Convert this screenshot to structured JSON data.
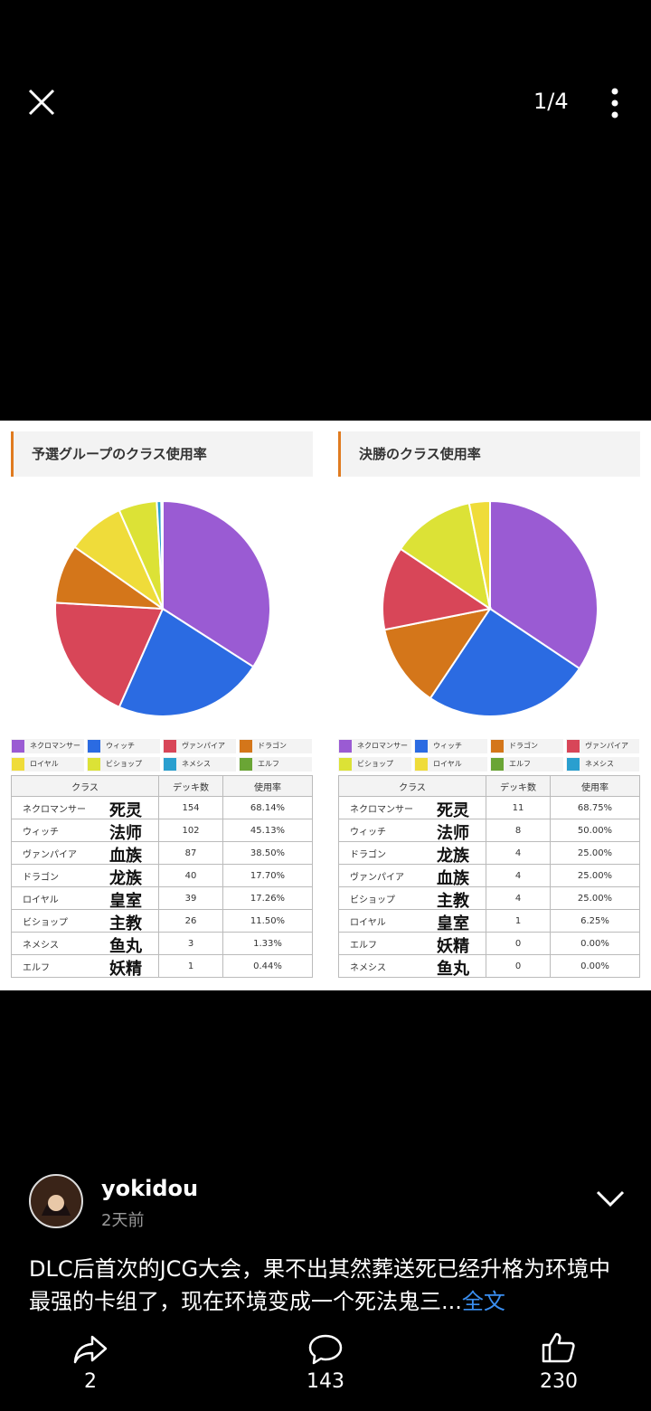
{
  "top_bar": {
    "page_indicator": "1/4"
  },
  "charts": [
    {
      "title": "予選グループのクラス使用率",
      "legend": [
        {
          "name": "ネクロマンサー",
          "color": "#9a5bd3"
        },
        {
          "name": "ウィッチ",
          "color": "#2b6be2"
        },
        {
          "name": "ヴァンパイア",
          "color": "#d84658"
        },
        {
          "name": "ドラゴン",
          "color": "#d4761a"
        },
        {
          "name": "ロイヤル",
          "color": "#efdc3a"
        },
        {
          "name": "ビショップ",
          "color": "#dce236"
        },
        {
          "name": "ネメシス",
          "color": "#2a9fcf"
        },
        {
          "name": "エルフ",
          "color": "#6aa535"
        }
      ],
      "table": {
        "header": [
          "クラス",
          "デッキ数",
          "使用率"
        ],
        "rows": [
          [
            "ネクロマンサー",
            "死灵",
            154,
            "68.14%"
          ],
          [
            "ウィッチ",
            "法师",
            102,
            "45.13%"
          ],
          [
            "ヴァンパイア",
            "血族",
            87,
            "38.50%"
          ],
          [
            "ドラゴン",
            "龙族",
            40,
            "17.70%"
          ],
          [
            "ロイヤル",
            "皇室",
            39,
            "17.26%"
          ],
          [
            "ビショップ",
            "主教",
            26,
            "11.50%"
          ],
          [
            "ネメシス",
            "鱼丸",
            3,
            "1.33%"
          ],
          [
            "エルフ",
            "妖精",
            1,
            "0.44%"
          ]
        ]
      }
    },
    {
      "title": "決勝のクラス使用率",
      "legend": [
        {
          "name": "ネクロマンサー",
          "color": "#9a5bd3"
        },
        {
          "name": "ウィッチ",
          "color": "#2b6be2"
        },
        {
          "name": "ドラゴン",
          "color": "#d4761a"
        },
        {
          "name": "ヴァンパイア",
          "color": "#d84658"
        },
        {
          "name": "ビショップ",
          "color": "#dce236"
        },
        {
          "name": "ロイヤル",
          "color": "#efdc3a"
        },
        {
          "name": "エルフ",
          "color": "#6aa535"
        },
        {
          "name": "ネメシス",
          "color": "#2a9fcf"
        }
      ],
      "table": {
        "header": [
          "クラス",
          "デッキ数",
          "使用率"
        ],
        "rows": [
          [
            "ネクロマンサー",
            "死灵",
            11,
            "68.75%"
          ],
          [
            "ウィッチ",
            "法师",
            8,
            "50.00%"
          ],
          [
            "ドラゴン",
            "龙族",
            4,
            "25.00%"
          ],
          [
            "ヴァンパイア",
            "血族",
            4,
            "25.00%"
          ],
          [
            "ビショップ",
            "主教",
            4,
            "25.00%"
          ],
          [
            "ロイヤル",
            "皇室",
            1,
            "6.25%"
          ],
          [
            "エルフ",
            "妖精",
            0,
            "0.00%"
          ],
          [
            "ネメシス",
            "鱼丸",
            0,
            "0.00%"
          ]
        ]
      }
    }
  ],
  "post": {
    "username": "yokidou",
    "time": "2天前",
    "text": "DLC后首次的JCG大会，果不出其然葬送死已经升格为环境中最强的卡组了，现在环境变成一个死法鬼三...",
    "more": "全文"
  },
  "actions": {
    "shares": 2,
    "comments": 143,
    "likes": 230
  }
}
